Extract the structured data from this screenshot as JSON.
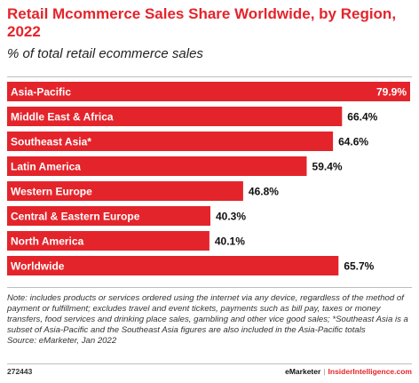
{
  "header": {
    "title": "Retail Mcommerce Sales Share Worldwide, by Region, 2022",
    "subtitle": "% of total retail ecommerce sales"
  },
  "colors": {
    "bar": "#e4242b",
    "title": "#e4242b"
  },
  "chart_data": {
    "type": "bar",
    "orientation": "horizontal",
    "title": "Retail Mcommerce Sales Share Worldwide, by Region, 2022",
    "subtitle": "% of total retail ecommerce sales",
    "categories": [
      "Asia-Pacific",
      "Middle East & Africa",
      "Southeast Asia*",
      "Latin America",
      "Western Europe",
      "Central & Eastern Europe",
      "North America",
      "Worldwide"
    ],
    "values": [
      79.9,
      66.4,
      64.6,
      59.4,
      46.8,
      40.3,
      40.1,
      65.7
    ],
    "value_labels": [
      "79.9%",
      "66.4%",
      "64.6%",
      "59.4%",
      "46.8%",
      "40.3%",
      "40.1%",
      "65.7%"
    ],
    "unit": "%",
    "xlim": [
      0,
      79.9
    ],
    "grid": false
  },
  "footer": {
    "note": "Note: includes products or services ordered using the internet via any device, regardless of the method of payment or fulfillment; excludes travel and event tickets, payments such as bill pay, taxes or money transfers, food services and drinking place sales, gambling and other vice good sales; *Southeast Asia is a subset of Asia-Pacific and the Southeast Asia figures are also included in the Asia-Pacific totals",
    "source": "Source: eMarketer, Jan 2022",
    "chart_id": "272443",
    "brand": "eMarketer",
    "brand_separator": "|",
    "brand_site": "InsiderIntelligence.com"
  }
}
